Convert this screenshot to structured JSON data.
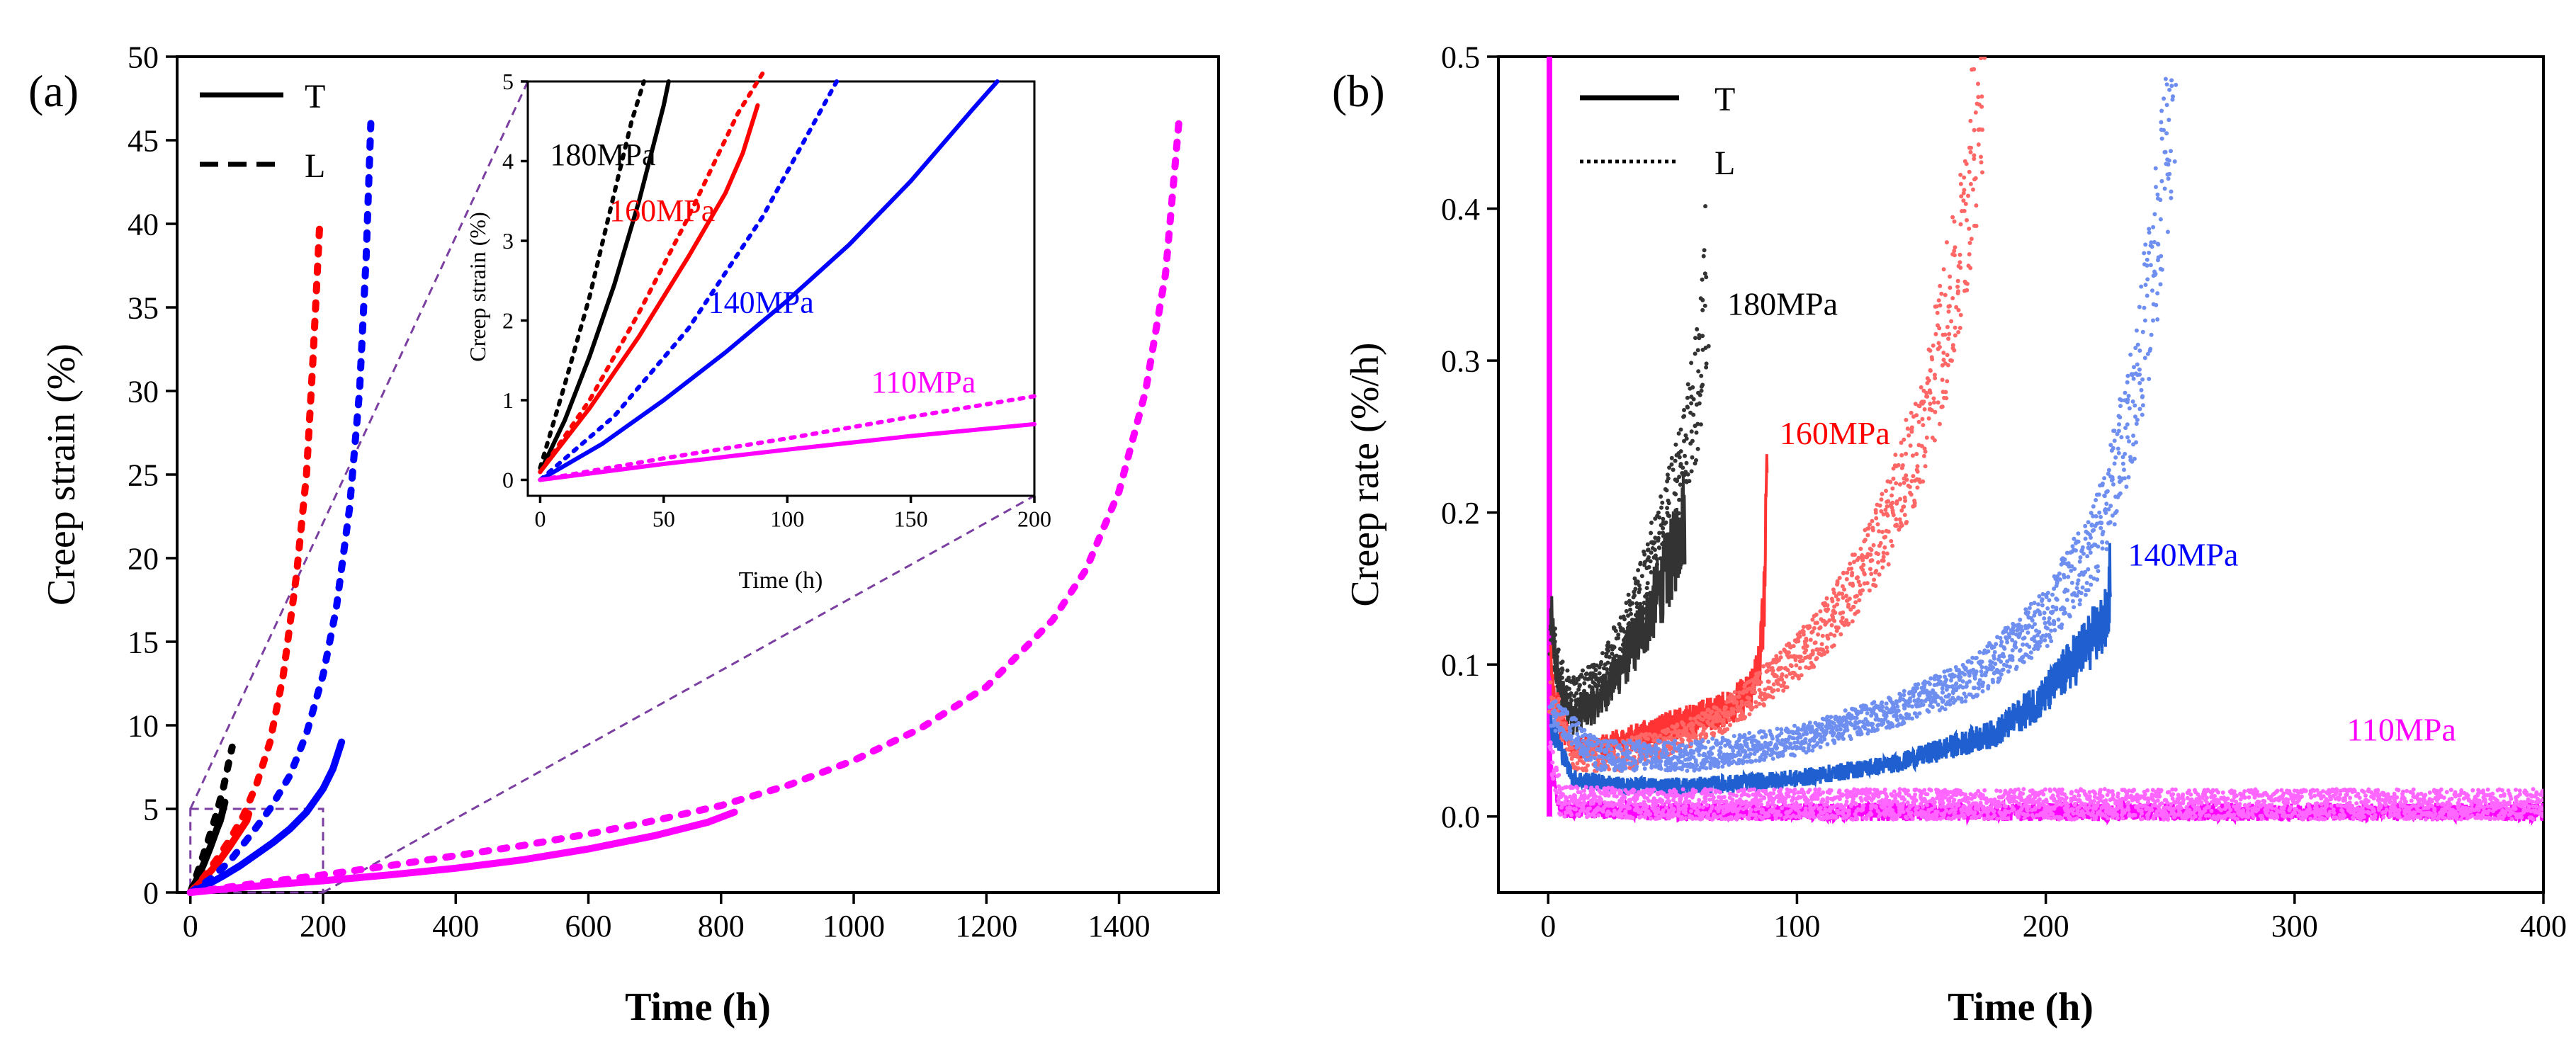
{
  "chart_data": [
    {
      "panel_label": "(a)",
      "type": "line",
      "xlabel": "Time (h)",
      "ylabel": "Creep strain (%)",
      "xlim": [
        -20,
        1550
      ],
      "ylim": [
        0,
        50
      ],
      "xticks": [
        0,
        200,
        400,
        600,
        800,
        1000,
        1200,
        1400
      ],
      "yticks": [
        0,
        5,
        10,
        15,
        20,
        25,
        30,
        35,
        40,
        45,
        50
      ],
      "legend": {
        "position": "top-left",
        "entries": [
          {
            "label": "T",
            "style": "solid"
          },
          {
            "label": "L",
            "style": "dashed"
          }
        ]
      },
      "annotations": [
        {
          "label": "zoom-box",
          "x_range": [
            0,
            200
          ],
          "y_range": [
            0,
            5
          ]
        }
      ],
      "series": [
        {
          "name": "180MPa T",
          "color": "#000000",
          "style": "solid",
          "x": [
            0,
            10,
            20,
            30,
            40,
            45,
            52
          ],
          "y": [
            0,
            0.8,
            1.7,
            2.7,
            3.8,
            4.3,
            5.4
          ]
        },
        {
          "name": "180MPa L",
          "color": "#000000",
          "style": "dotted",
          "x": [
            0,
            10,
            20,
            30,
            40,
            50,
            58,
            63
          ],
          "y": [
            0,
            1.1,
            2.3,
            3.5,
            4.8,
            6.3,
            7.8,
            8.7
          ]
        },
        {
          "name": "160MPa T",
          "color": "#ff0000",
          "style": "solid",
          "x": [
            0,
            20,
            40,
            60,
            75,
            85,
            88
          ],
          "y": [
            0,
            0.8,
            1.7,
            2.8,
            3.7,
            4.3,
            4.7
          ]
        },
        {
          "name": "160MPa L",
          "color": "#ff0000",
          "style": "dotted",
          "x": [
            0,
            20,
            40,
            60,
            80,
            100,
            120,
            140,
            160,
            175,
            185,
            195
          ],
          "y": [
            0,
            0.9,
            2.0,
            3.2,
            4.6,
            6.5,
            9,
            13,
            19,
            25,
            32,
            40
          ]
        },
        {
          "name": "140MPa T",
          "color": "#0000ff",
          "style": "solid",
          "x": [
            0,
            25,
            50,
            75,
            100,
            125,
            150,
            175,
            200,
            215,
            228
          ],
          "y": [
            0,
            0.45,
            1.0,
            1.6,
            2.3,
            3.0,
            3.8,
            4.8,
            6.2,
            7.4,
            9.0
          ]
        },
        {
          "name": "140MPa L",
          "color": "#0000ff",
          "style": "dotted",
          "x": [
            0,
            30,
            60,
            90,
            120,
            150,
            175,
            200,
            220,
            240,
            255,
            265,
            272
          ],
          "y": [
            0,
            0.8,
            1.9,
            3.4,
            5.0,
            7.0,
            9.5,
            13,
            17,
            23,
            30,
            38,
            46
          ]
        },
        {
          "name": "110MPa T",
          "color": "#ff00ff",
          "style": "solid",
          "x": [
            0,
            50,
            100,
            150,
            200,
            300,
            400,
            500,
            600,
            700,
            780,
            820
          ],
          "y": [
            0,
            0.2,
            0.38,
            0.55,
            0.7,
            1.05,
            1.45,
            1.95,
            2.6,
            3.4,
            4.2,
            4.8
          ]
        },
        {
          "name": "110MPa L",
          "color": "#ff00ff",
          "style": "dotted",
          "x": [
            0,
            100,
            200,
            300,
            400,
            500,
            600,
            700,
            800,
            900,
            1000,
            1100,
            1200,
            1300,
            1350,
            1400,
            1440,
            1470,
            1490
          ],
          "y": [
            0,
            0.55,
            1.05,
            1.6,
            2.2,
            2.8,
            3.5,
            4.3,
            5.2,
            6.4,
            7.9,
            9.8,
            12.3,
            16.3,
            19.3,
            24,
            30,
            37,
            46
          ]
        }
      ],
      "inset": {
        "xlabel": "Time (h)",
        "ylabel": "Creep strain (%)",
        "xlim": [
          -5,
          200
        ],
        "ylim": [
          -0.2,
          5
        ],
        "xticks": [
          0,
          50,
          100,
          150,
          200
        ],
        "yticks": [
          0,
          1,
          2,
          3,
          4,
          5
        ],
        "labels": [
          {
            "text": "180MPa",
            "color": "#000000",
            "x": 4,
            "y": 3.95
          },
          {
            "text": "160MPa",
            "color": "#ff0000",
            "x": 28,
            "y": 3.25
          },
          {
            "text": "140MPa",
            "color": "#0000ff",
            "x": 68,
            "y": 2.1
          },
          {
            "text": "110MPa",
            "color": "#ff00ff",
            "x": 134,
            "y": 1.1
          }
        ],
        "series": [
          {
            "name": "180MPa T",
            "color": "#000000",
            "style": "solid",
            "x": [
              0,
              10,
              20,
              30,
              40,
              50,
              52
            ],
            "y": [
              0.1,
              0.75,
              1.55,
              2.45,
              3.5,
              4.7,
              5
            ]
          },
          {
            "name": "180MPa L",
            "color": "#000000",
            "style": "dotted",
            "x": [
              0,
              10,
              20,
              30,
              37,
              42
            ],
            "y": [
              0.15,
              1.2,
              2.3,
              3.6,
              4.5,
              5
            ]
          },
          {
            "name": "160MPa T",
            "color": "#ff0000",
            "style": "solid",
            "x": [
              0,
              20,
              40,
              60,
              75,
              82,
              86,
              88
            ],
            "y": [
              0.1,
              0.9,
              1.8,
              2.8,
              3.6,
              4.1,
              4.5,
              4.7
            ]
          },
          {
            "name": "160MPa L",
            "color": "#ff0000",
            "style": "dotted",
            "x": [
              0,
              20,
              40,
              60,
              80,
              90
            ],
            "y": [
              0.1,
              1.0,
              2.1,
              3.3,
              4.6,
              5.1
            ]
          },
          {
            "name": "140MPa T",
            "color": "#0000ff",
            "style": "solid",
            "x": [
              0,
              25,
              50,
              75,
              100,
              125,
              150,
              175,
              185
            ],
            "y": [
              0,
              0.45,
              1.0,
              1.6,
              2.25,
              2.95,
              3.75,
              4.65,
              5
            ]
          },
          {
            "name": "140MPa L",
            "color": "#0000ff",
            "style": "dotted",
            "x": [
              0,
              30,
              60,
              90,
              120
            ],
            "y": [
              0,
              0.8,
              1.9,
              3.3,
              5
            ]
          },
          {
            "name": "110MPa T",
            "color": "#ff00ff",
            "style": "solid",
            "x": [
              0,
              50,
              100,
              150,
              200
            ],
            "y": [
              0,
              0.2,
              0.38,
              0.55,
              0.7
            ]
          },
          {
            "name": "110MPa L",
            "color": "#ff00ff",
            "style": "dotted",
            "x": [
              0,
              50,
              100,
              150,
              200
            ],
            "y": [
              0,
              0.27,
              0.52,
              0.79,
              1.05
            ]
          }
        ]
      }
    },
    {
      "panel_label": "(b)",
      "type": "scatter",
      "xlabel": "Time (h)",
      "ylabel": "Creep rate (%/h)",
      "xlim": [
        -20,
        400
      ],
      "ylim": [
        -0.05,
        0.5
      ],
      "xticks": [
        0,
        100,
        200,
        300,
        400
      ],
      "yticks": [
        0.0,
        0.1,
        0.2,
        0.3,
        0.4,
        0.5
      ],
      "legend": {
        "position": "top-left",
        "entries": [
          {
            "label": "T",
            "style": "solid"
          },
          {
            "label": "L",
            "style": "dotted"
          }
        ]
      },
      "labels": [
        {
          "text": "180MPa",
          "color": "#000000",
          "x": 72,
          "y": 0.33
        },
        {
          "text": "160MPa",
          "color": "#ff0000",
          "x": 93,
          "y": 0.245
        },
        {
          "text": "140MPa",
          "color": "#0000ff",
          "x": 233,
          "y": 0.165
        },
        {
          "text": "110MPa",
          "color": "#ff00ff",
          "x": 321,
          "y": 0.05
        }
      ],
      "series": [
        {
          "name": "180MPa T",
          "color": "#333333",
          "style": "solid",
          "x": [
            1,
            3,
            5,
            10,
            20,
            30,
            40,
            50,
            55
          ],
          "y": [
            0.13,
            0.1,
            0.08,
            0.065,
            0.075,
            0.1,
            0.13,
            0.17,
            0.2
          ]
        },
        {
          "name": "180MPa L",
          "color": "#333333",
          "style": "dotted",
          "x": [
            1,
            5,
            10,
            20,
            30,
            40,
            50,
            60,
            64
          ],
          "y": [
            0.12,
            0.09,
            0.08,
            0.09,
            0.12,
            0.16,
            0.21,
            0.28,
            0.36
          ]
        },
        {
          "name": "160MPa T",
          "color": "#ff3333",
          "style": "solid",
          "x": [
            1,
            5,
            10,
            20,
            30,
            40,
            50,
            60,
            70,
            80,
            85,
            87,
            88
          ],
          "y": [
            0.1,
            0.06,
            0.045,
            0.045,
            0.05,
            0.055,
            0.06,
            0.065,
            0.07,
            0.08,
            0.1,
            0.15,
            0.225
          ]
        },
        {
          "name": "160MPa L",
          "color": "#ff6666",
          "style": "dotted",
          "x": [
            1,
            10,
            30,
            50,
            70,
            90,
            110,
            130,
            150,
            165,
            175
          ],
          "y": [
            0.08,
            0.04,
            0.04,
            0.05,
            0.065,
            0.09,
            0.12,
            0.17,
            0.25,
            0.36,
            0.5
          ]
        },
        {
          "name": "140MPa T",
          "color": "#1f5fd0",
          "style": "solid",
          "x": [
            1,
            10,
            30,
            60,
            100,
            140,
            180,
            200,
            215,
            225,
            226
          ],
          "y": [
            0.06,
            0.025,
            0.02,
            0.02,
            0.025,
            0.035,
            0.055,
            0.08,
            0.11,
            0.13,
            0.165
          ]
        },
        {
          "name": "140MPa L",
          "color": "#6f8ff0",
          "style": "dotted",
          "x": [
            1,
            20,
            60,
            100,
            140,
            170,
            200,
            220,
            235,
            245,
            252
          ],
          "y": [
            0.07,
            0.04,
            0.04,
            0.05,
            0.07,
            0.09,
            0.13,
            0.18,
            0.27,
            0.38,
            0.5
          ]
        },
        {
          "name": "110MPa T",
          "color": "#ff00ff",
          "style": "solid",
          "x": [
            1,
            5,
            50,
            100,
            200,
            300,
            400
          ],
          "y": [
            0.03,
            0.005,
            0.003,
            0.003,
            0.003,
            0.003,
            0.003
          ]
        },
        {
          "name": "110MPa L",
          "color": "#ff66ff",
          "style": "dotted",
          "x": [
            1,
            5,
            50,
            100,
            200,
            300,
            400
          ],
          "y": [
            0.04,
            0.01,
            0.008,
            0.008,
            0.008,
            0.008,
            0.008
          ]
        }
      ]
    }
  ]
}
